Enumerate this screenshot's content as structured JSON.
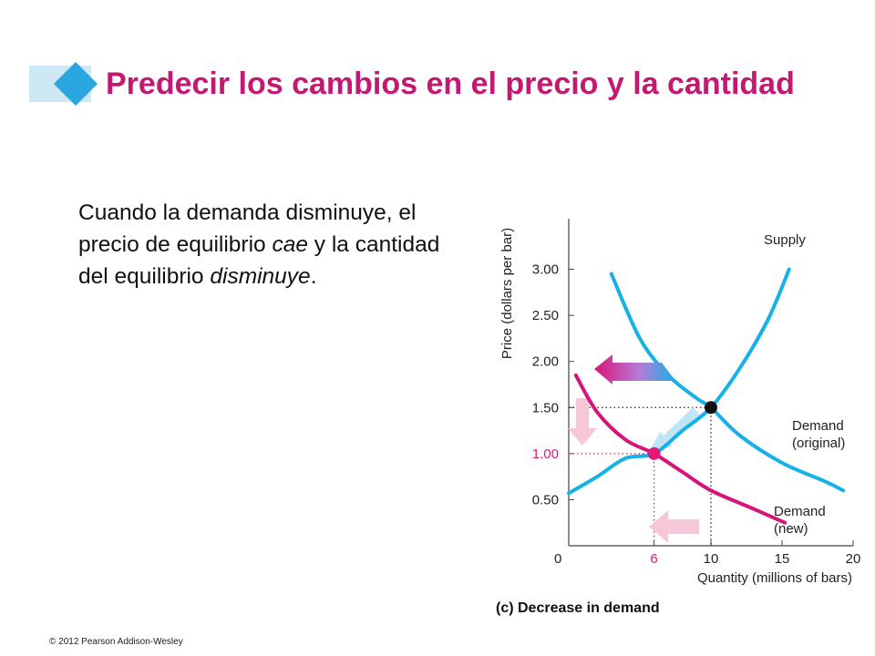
{
  "slide": {
    "title": "Predecir los cambios en el precio y la cantidad",
    "body": [
      {
        "text": "Cuando la demanda disminuye, el precio de equilibrio ",
        "em": false
      },
      {
        "text": "cae",
        "em": true
      },
      {
        "text": " y la cantidad del equilibrio ",
        "em": false
      },
      {
        "text": "disminuye",
        "em": true
      },
      {
        "text": ".",
        "em": false
      }
    ],
    "footer": "© 2012 Pearson Addison-Wesley"
  },
  "colors": {
    "title": "#c21a72",
    "supply": "#16b1e6",
    "demand_original": "#16b1e6",
    "demand_new": "#d6147a",
    "highlight": "#e5177a",
    "pale_arrow": "#f6c6d9",
    "accent_diamond": "#2aa6e0",
    "accent_bar": "#cfe8f6"
  },
  "chart_data": {
    "type": "line",
    "caption": "(c) Decrease in demand",
    "xlabel": "Quantity (millions of bars)",
    "ylabel": "Price (dollars per bar)",
    "xlim": [
      0,
      20
    ],
    "ylim": [
      0,
      3.5
    ],
    "x_ticks": [
      "0",
      "6",
      "10",
      "15",
      "20"
    ],
    "x_tick_values": [
      0,
      6,
      10,
      15,
      20
    ],
    "y_ticks": [
      "0.50",
      "1.00",
      "1.50",
      "2.00",
      "2.50",
      "3.00"
    ],
    "y_tick_values": [
      0.5,
      1.0,
      1.5,
      2.0,
      2.5,
      3.0
    ],
    "highlighted_ticks": {
      "x": "6",
      "y": "1.00"
    },
    "series": [
      {
        "name": "Supply",
        "points": [
          [
            0,
            0.57
          ],
          [
            2,
            0.75
          ],
          [
            4,
            0.95
          ],
          [
            6,
            1.0
          ],
          [
            8,
            1.25
          ],
          [
            10,
            1.5
          ],
          [
            12,
            1.92
          ],
          [
            14,
            2.45
          ],
          [
            15.5,
            3.0
          ]
        ]
      },
      {
        "name": "Demand (original)",
        "points": [
          [
            3,
            2.95
          ],
          [
            5,
            2.25
          ],
          [
            7,
            1.85
          ],
          [
            9,
            1.6
          ],
          [
            10,
            1.5
          ],
          [
            12,
            1.2
          ],
          [
            15,
            0.9
          ],
          [
            18,
            0.7
          ],
          [
            19.3,
            0.6
          ]
        ]
      },
      {
        "name": "Demand (new)",
        "points": [
          [
            0.5,
            1.85
          ],
          [
            2,
            1.45
          ],
          [
            4,
            1.15
          ],
          [
            6,
            1.0
          ],
          [
            8,
            0.8
          ],
          [
            10,
            0.6
          ],
          [
            13,
            0.4
          ],
          [
            15.2,
            0.25
          ]
        ]
      }
    ],
    "legend_labels": [
      {
        "series": "Supply",
        "lines": [
          "Supply"
        ]
      },
      {
        "series": "Demand (original)",
        "lines": [
          "Demand",
          "(original)"
        ]
      },
      {
        "series": "Demand (new)",
        "lines": [
          "Demand",
          "(new)"
        ]
      }
    ],
    "equilibria": [
      {
        "label": "original",
        "x": 10,
        "y": 1.5
      },
      {
        "label": "new",
        "x": 6,
        "y": 1.0
      }
    ]
  }
}
